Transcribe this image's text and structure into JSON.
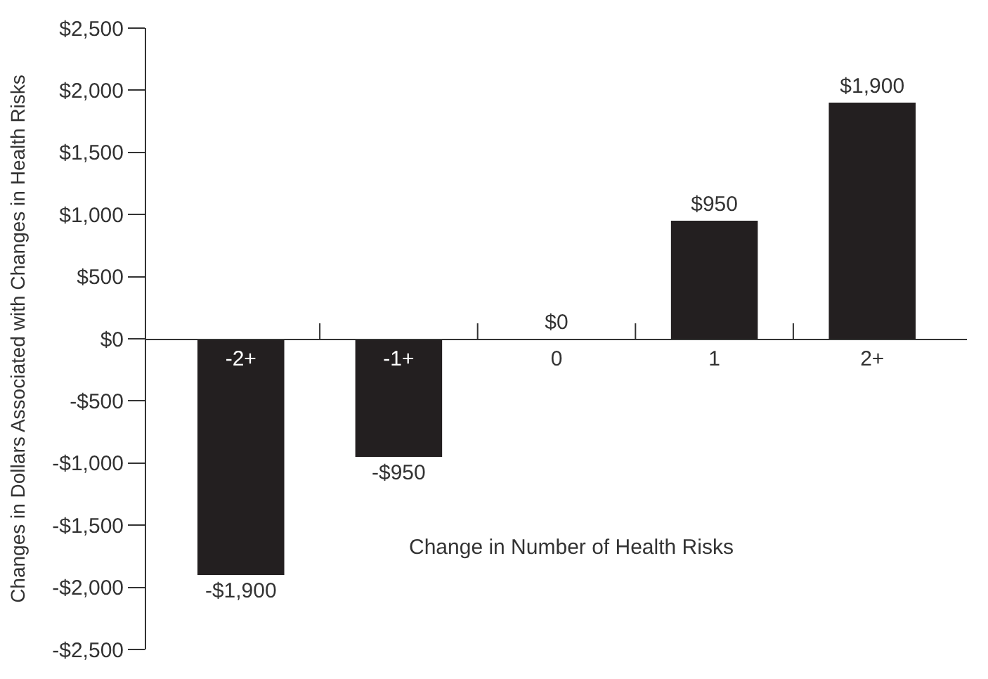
{
  "chart_data": {
    "type": "bar",
    "xlabel": "Change in Number of Health Risks",
    "ylabel": "Changes in Dollars Associated with Changes in Health Risks",
    "categories": [
      "-2+",
      "-1+",
      "0",
      "1",
      "2+"
    ],
    "values": [
      -1900,
      -950,
      0,
      950,
      1900
    ],
    "color": "#231f20",
    "value_labels": [
      "-$1,900",
      "-$950",
      "$0",
      "$950",
      "$1,900"
    ],
    "ylim": [
      -2500,
      2500
    ],
    "yticks": [
      {
        "value": -2500,
        "label": "-$2,500"
      },
      {
        "value": -2000,
        "label": "-$2,000"
      },
      {
        "value": -1500,
        "label": "-$1,500"
      },
      {
        "value": -1000,
        "label": "-$1,000"
      },
      {
        "value": -500,
        "label": "-$500"
      },
      {
        "value": 0,
        "label": "$0"
      },
      {
        "value": 500,
        "label": "$500"
      },
      {
        "value": 1000,
        "label": "$1,000"
      },
      {
        "value": 1500,
        "label": "$1,500"
      },
      {
        "value": 2000,
        "label": "$2,000"
      },
      {
        "value": 2500,
        "label": "$2,500"
      }
    ],
    "legend": false
  }
}
